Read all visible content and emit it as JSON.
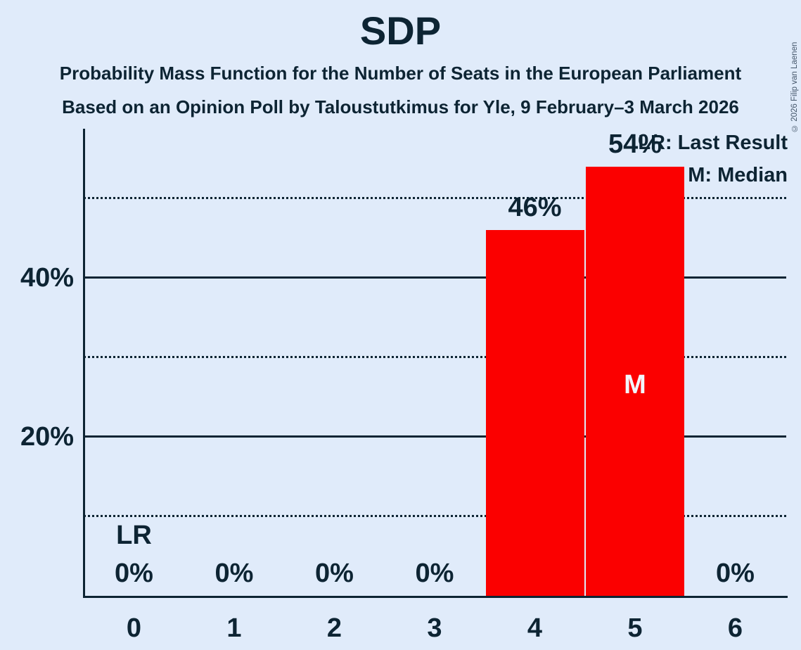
{
  "title": "SDP",
  "subtitle1": "Probability Mass Function for the Number of Seats in the European Parliament",
  "subtitle2": "Based on an Opinion Poll by Taloustutkimus for Yle, 9 February–3 March 2026",
  "copyright": "© 2026 Filip van Laenen",
  "legend": {
    "lr": "LR: Last Result",
    "m": "M: Median"
  },
  "chart_data": {
    "type": "bar",
    "title": "SDP",
    "categories": [
      "0",
      "1",
      "2",
      "3",
      "4",
      "5",
      "6"
    ],
    "values": [
      0,
      0,
      0,
      0,
      46,
      54,
      0
    ],
    "value_labels": [
      "0%",
      "0%",
      "0%",
      "0%",
      "46%",
      "54%",
      "0%"
    ],
    "xlabel": "",
    "ylabel": "",
    "ylim": [
      0,
      58.8
    ],
    "y_axis": {
      "solid_ticks": [
        {
          "value": 20,
          "label": "20%"
        },
        {
          "value": 40,
          "label": "40%"
        }
      ],
      "dotted_gridlines": [
        10,
        30,
        50
      ]
    },
    "legend_position": "top-right",
    "annotations": {
      "last_result": {
        "seat": "0",
        "label": "LR"
      },
      "median": {
        "seat": "5",
        "label": "M"
      }
    },
    "colors": {
      "background": "#e0ebfa",
      "text": "#0d2433",
      "bar": "#fb0000",
      "median_text": "#f2f6fc"
    }
  }
}
